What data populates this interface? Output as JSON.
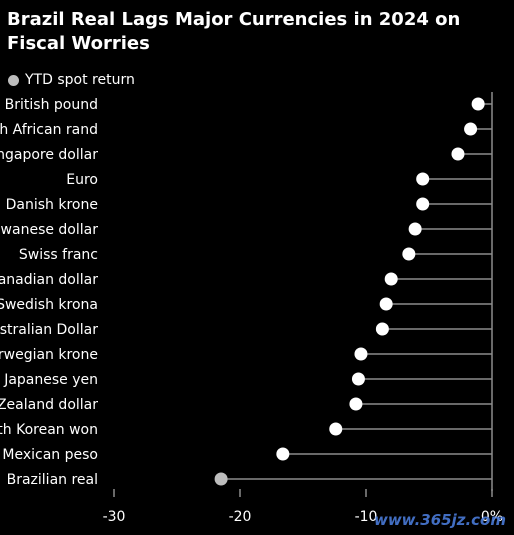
{
  "chart_data": {
    "type": "scatter",
    "title": "Brazil Real Lags Major Currencies in 2024 on Fiscal Worries",
    "legend": {
      "label": "YTD spot return",
      "placement": "top-left"
    },
    "categories": [
      "British pound",
      "South African rand",
      "Singapore dollar",
      "Euro",
      "Danish krone",
      "Taiwanese dollar",
      "Swiss franc",
      "Canadian dollar",
      "Swedish krona",
      "Australian Dollar",
      "Norwegian krone",
      "Japanese yen",
      "New Zealand dollar",
      "South Korean won",
      "Mexican peso",
      "Brazilian real"
    ],
    "series": [
      {
        "name": "YTD spot return",
        "values": [
          -1.1,
          -1.7,
          -2.7,
          -5.5,
          -5.5,
          -6.1,
          -6.6,
          -8.0,
          -8.4,
          -8.7,
          -10.4,
          -10.6,
          -10.8,
          -12.4,
          -16.6,
          -21.5
        ]
      }
    ],
    "xlim": [
      -31,
      1
    ],
    "xticks": [
      -30,
      -20,
      -10,
      0
    ],
    "xtick_labels": [
      "-30",
      "-20",
      "-10",
      "0%"
    ],
    "highlight": {
      "category": "Brazilian real",
      "color": "#bdbdbd"
    },
    "colors": {
      "background": "#000000",
      "dot": "#ffffff",
      "line": "#8c8c8c",
      "axis": "#8c8c8c",
      "text": "#ffffff"
    },
    "grid": false
  },
  "watermark": "www.365jz.com"
}
